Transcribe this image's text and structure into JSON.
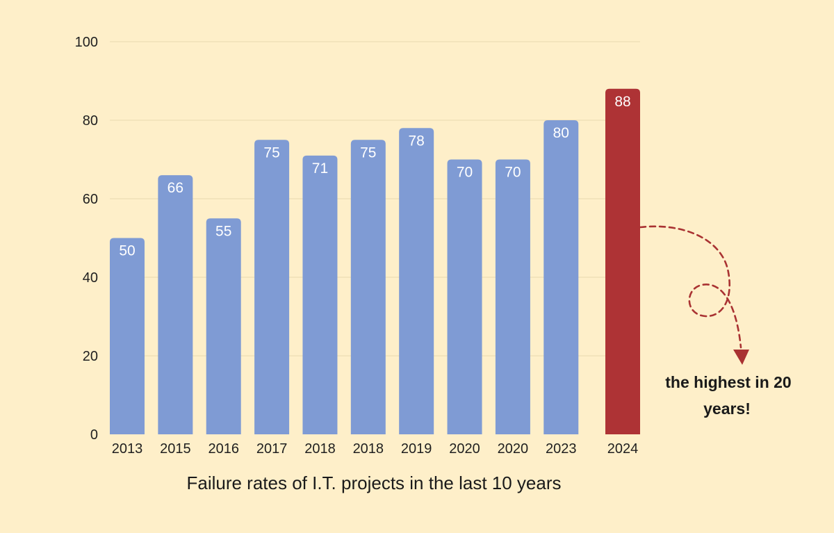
{
  "colors": {
    "background": "#FEEFC9",
    "bar": "#7F9BD4",
    "highlight": "#AE3335",
    "grid": "#E8D8B0",
    "arrow": "#A93232"
  },
  "chart_data": {
    "type": "bar",
    "categories": [
      "2013",
      "2015",
      "2016",
      "2017",
      "2018",
      "2018",
      "2019",
      "2020",
      "2020",
      "2023",
      "2024"
    ],
    "values": [
      50,
      66,
      55,
      75,
      71,
      75,
      78,
      70,
      70,
      80,
      88
    ],
    "highlight_index": 10,
    "title": "Failure rates of I.T. projects in the last 10 years",
    "xlabel": "",
    "ylabel": "",
    "ylim": [
      0,
      100
    ],
    "yticks": [
      0,
      20,
      40,
      60,
      80,
      100
    ],
    "grid": true,
    "annotation": {
      "line1": "the highest in 20",
      "line2": "years!"
    }
  }
}
